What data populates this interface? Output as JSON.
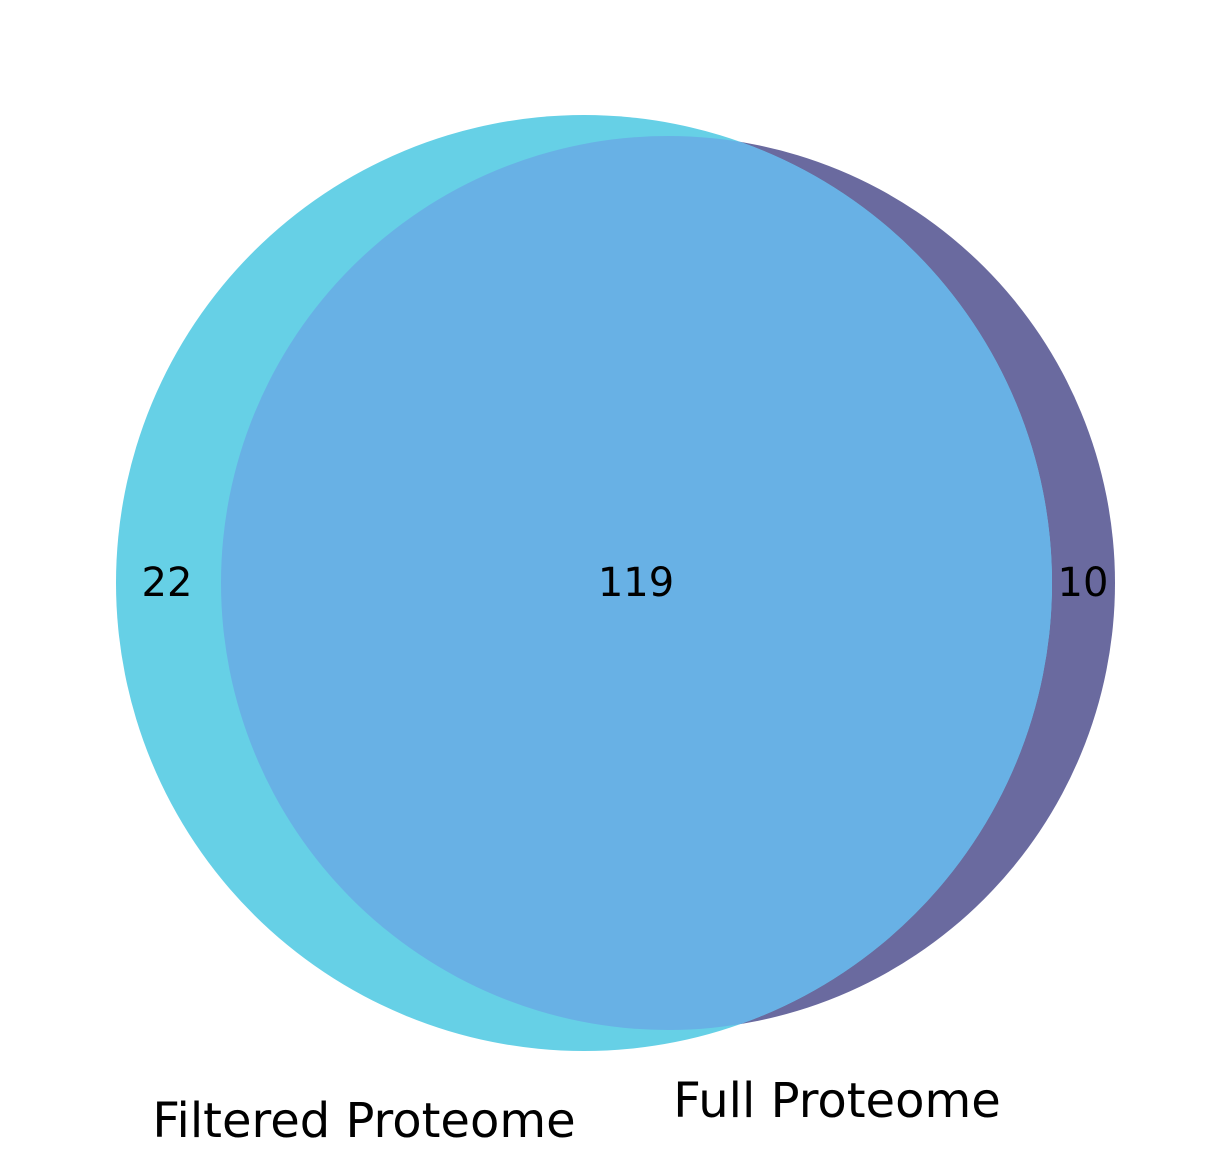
{
  "venn": {
    "sets": [
      {
        "name": "Filtered Proteome",
        "color": "#66d0e6"
      },
      {
        "name": "Full Proteome",
        "color": "#6a6a9f"
      }
    ],
    "intersection_color": "#68b1e5",
    "regions": {
      "only_filtered": "22",
      "both": "119",
      "only_full": "10"
    }
  }
}
